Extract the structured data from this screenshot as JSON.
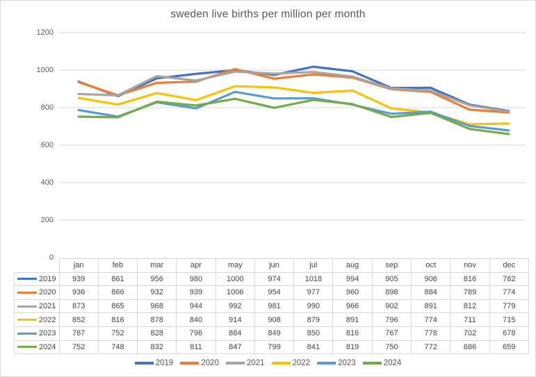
{
  "chart_data": {
    "type": "line",
    "title": "sweden live births per million per month",
    "categories": [
      "jan",
      "feb",
      "mar",
      "apr",
      "may",
      "jun",
      "jul",
      "aug",
      "sep",
      "oct",
      "nov",
      "dec"
    ],
    "series": [
      {
        "name": "2019",
        "color": "#4472C4",
        "values": [
          939,
          861,
          956,
          980,
          1000,
          974,
          1018,
          994,
          905,
          906,
          816,
          782
        ]
      },
      {
        "name": "2020",
        "color": "#ED7D31",
        "values": [
          936,
          866,
          932,
          939,
          1006,
          954,
          977,
          960,
          898,
          884,
          789,
          774
        ]
      },
      {
        "name": "2021",
        "color": "#A5A5A5",
        "values": [
          873,
          865,
          968,
          944,
          992,
          981,
          990,
          966,
          902,
          891,
          812,
          779
        ]
      },
      {
        "name": "2022",
        "color": "#FFC000",
        "values": [
          852,
          816,
          878,
          840,
          914,
          908,
          879,
          891,
          796,
          774,
          711,
          715
        ]
      },
      {
        "name": "2023",
        "color": "#5B9BD5",
        "values": [
          787,
          752,
          828,
          796,
          884,
          849,
          850,
          816,
          767,
          778,
          702,
          678
        ]
      },
      {
        "name": "2024",
        "color": "#70AD47",
        "values": [
          752,
          748,
          832,
          811,
          847,
          799,
          841,
          819,
          750,
          772,
          686,
          659
        ]
      }
    ],
    "ylim": [
      0,
      1200
    ],
    "yticks": [
      0,
      200,
      400,
      600,
      800,
      1000,
      1200
    ],
    "grid": true,
    "gridline_color": "#d9d9d9",
    "text_color": "#595959",
    "legend_position": "bottom",
    "data_table_shown": true
  }
}
